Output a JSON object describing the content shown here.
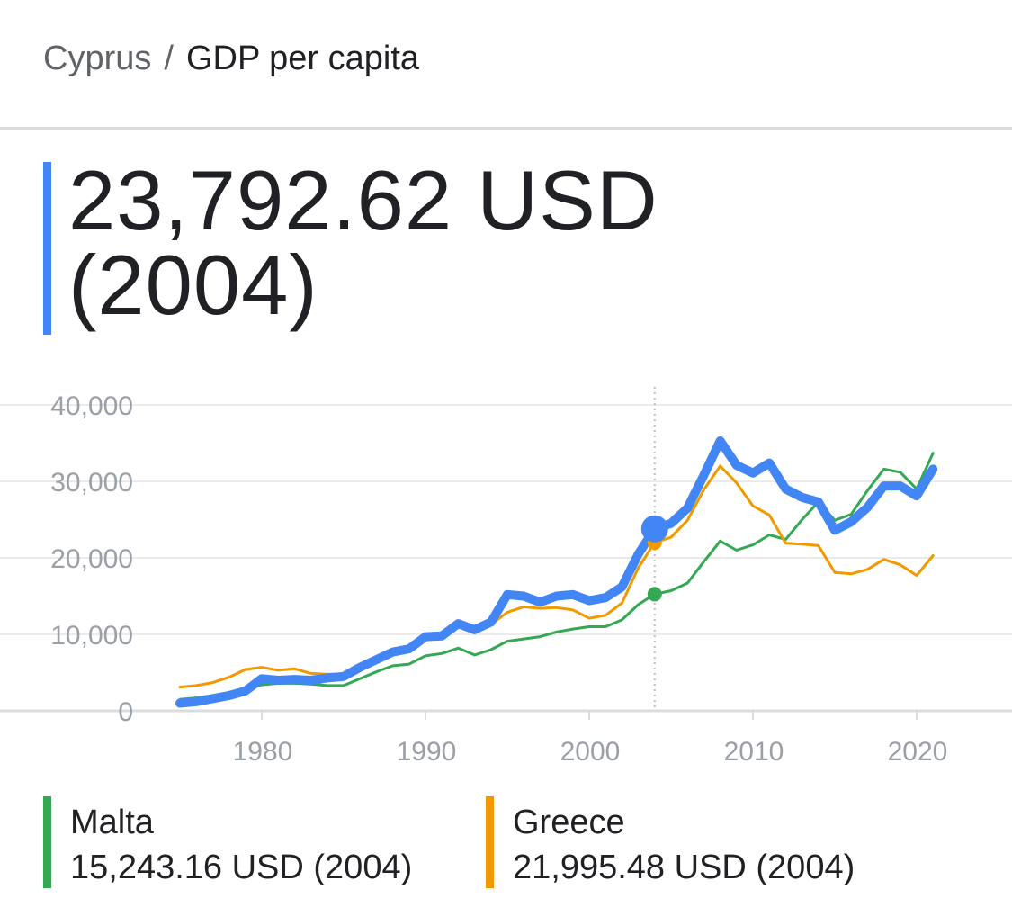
{
  "breadcrumb": {
    "country": "Cyprus",
    "separator": "/",
    "metric": "GDP per capita"
  },
  "headline": {
    "line1": "23,792.62 USD",
    "line2": "(2004)",
    "color": "#4285f4"
  },
  "legend": [
    {
      "name": "Malta",
      "value": "15,243.16 USD (2004)",
      "color": "#34a853"
    },
    {
      "name": "Greece",
      "value": "21,995.48 USD (2004)",
      "color": "#f29900"
    }
  ],
  "chart_data": {
    "type": "line",
    "title": "",
    "xlabel": "",
    "ylabel": "",
    "xlim": [
      1970,
      2026
    ],
    "ylim": [
      0,
      40000
    ],
    "y_ticks": [
      0,
      10000,
      20000,
      30000,
      40000
    ],
    "y_tick_labels": [
      "0",
      "10,000",
      "20,000",
      "30,000",
      "40,000"
    ],
    "x_ticks": [
      1980,
      1990,
      2000,
      2010,
      2020
    ],
    "x_tick_labels": [
      "1980",
      "1990",
      "2000",
      "2010",
      "2020"
    ],
    "grid": true,
    "highlight_x": 2004,
    "x": [
      1975,
      1976,
      1977,
      1978,
      1979,
      1980,
      1981,
      1982,
      1983,
      1984,
      1985,
      1986,
      1987,
      1988,
      1989,
      1990,
      1991,
      1992,
      1993,
      1994,
      1995,
      1996,
      1997,
      1998,
      1999,
      2000,
      2001,
      2002,
      2003,
      2004,
      2005,
      2006,
      2007,
      2008,
      2009,
      2010,
      2011,
      2012,
      2013,
      2014,
      2015,
      2016,
      2017,
      2018,
      2019,
      2020,
      2021
    ],
    "series": [
      {
        "name": "Cyprus",
        "color": "#4285f4",
        "values": [
          1000,
          1200,
          1600,
          2000,
          2600,
          4200,
          4000,
          4100,
          4000,
          4300,
          4500,
          5700,
          6700,
          7700,
          8100,
          9700,
          9800,
          11400,
          10600,
          11600,
          15200,
          15000,
          14200,
          15000,
          15200,
          14400,
          14800,
          16200,
          20500,
          23792.62,
          24500,
          26500,
          30800,
          35300,
          32100,
          31100,
          32400,
          29000,
          27900,
          27300,
          23600,
          24700,
          26600,
          29400,
          29400,
          28100,
          31600
        ]
      },
      {
        "name": "Malta",
        "color": "#34a853",
        "values": [
          1500,
          1700,
          2000,
          2400,
          2900,
          3400,
          3600,
          3600,
          3500,
          3300,
          3300,
          4200,
          5100,
          5900,
          6100,
          7200,
          7500,
          8200,
          7300,
          8000,
          9100,
          9400,
          9700,
          10300,
          10700,
          11000,
          11000,
          11900,
          13900,
          15243.16,
          15700,
          16700,
          19500,
          22200,
          21000,
          21700,
          23000,
          22400,
          25000,
          27300,
          24900,
          25700,
          28800,
          31600,
          31200,
          29000,
          33700
        ]
      },
      {
        "name": "Greece",
        "color": "#f29900",
        "values": [
          3100,
          3300,
          3700,
          4400,
          5400,
          5700,
          5300,
          5500,
          4900,
          4800,
          4800,
          5700,
          6700,
          7700,
          8000,
          9700,
          9900,
          11000,
          10500,
          11300,
          12900,
          13600,
          13400,
          13500,
          13200,
          12100,
          12500,
          14100,
          18700,
          21995.48,
          22700,
          24900,
          28900,
          32000,
          29800,
          26800,
          25600,
          21900,
          21800,
          21600,
          18100,
          17900,
          18500,
          19800,
          19100,
          17700,
          20300
        ]
      }
    ]
  }
}
